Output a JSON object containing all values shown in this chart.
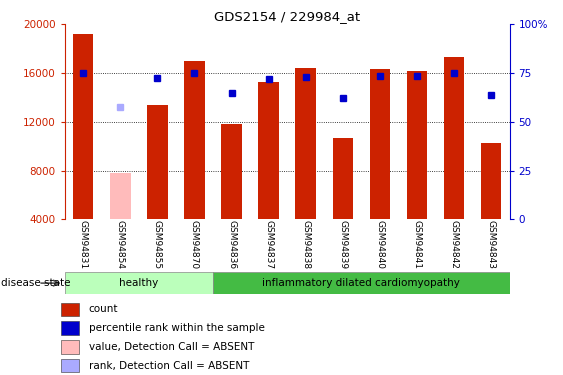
{
  "title": "GDS2154 / 229984_at",
  "samples": [
    "GSM94831",
    "GSM94854",
    "GSM94855",
    "GSM94870",
    "GSM94836",
    "GSM94837",
    "GSM94838",
    "GSM94839",
    "GSM94840",
    "GSM94841",
    "GSM94842",
    "GSM94843"
  ],
  "bar_values": [
    19200,
    7800,
    13400,
    17000,
    11800,
    15300,
    16400,
    10700,
    16300,
    16200,
    17300,
    10300
  ],
  "bar_colors": [
    "#cc2200",
    "#ffbbbb",
    "#cc2200",
    "#cc2200",
    "#cc2200",
    "#cc2200",
    "#cc2200",
    "#cc2200",
    "#cc2200",
    "#cc2200",
    "#cc2200",
    "#cc2200"
  ],
  "dot_values": [
    16000,
    13200,
    15600,
    16000,
    14400,
    15500,
    15700,
    14000,
    15800,
    15800,
    16000,
    14200
  ],
  "dot_colors": [
    "#0000cc",
    "#aaaaff",
    "#0000cc",
    "#0000cc",
    "#0000cc",
    "#0000cc",
    "#0000cc",
    "#0000cc",
    "#0000cc",
    "#0000cc",
    "#0000cc",
    "#0000cc"
  ],
  "healthy_count": 4,
  "ylim_left": [
    4000,
    20000
  ],
  "ylim_right": [
    0,
    100
  ],
  "yticks_left": [
    4000,
    8000,
    12000,
    16000,
    20000
  ],
  "yticks_right": [
    0,
    25,
    50,
    75,
    100
  ],
  "yticklabels_right": [
    "0",
    "25",
    "50",
    "75",
    "100%"
  ],
  "grid_values": [
    8000,
    12000,
    16000
  ],
  "healthy_label": "healthy",
  "disease_label": "inflammatory dilated cardiomyopathy",
  "disease_state_label": "disease state",
  "legend_items": [
    {
      "label": "count",
      "color": "#cc2200"
    },
    {
      "label": "percentile rank within the sample",
      "color": "#0000cc"
    },
    {
      "label": "value, Detection Call = ABSENT",
      "color": "#ffbbbb"
    },
    {
      "label": "rank, Detection Call = ABSENT",
      "color": "#aaaaff"
    }
  ],
  "bar_width": 0.55,
  "bg_color": "#ffffff",
  "plot_bg": "#ffffff",
  "tick_bg": "#cccccc",
  "healthy_bg": "#bbffbb",
  "disease_bg": "#44bb44"
}
